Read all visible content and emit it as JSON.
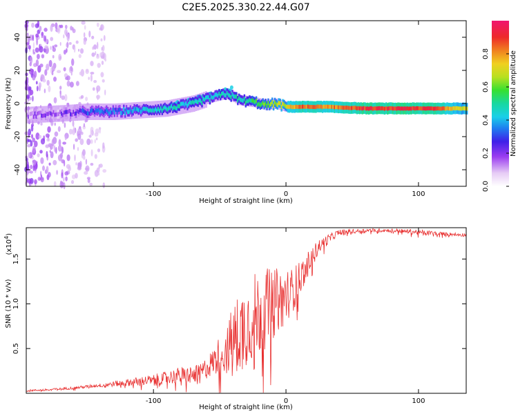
{
  "figure_title": "C2E5.2025.330.22.44.G07",
  "colors": {
    "snr_line": "#e83030",
    "spectrogram_band": "#18c890",
    "frame": "#000000"
  },
  "chart_data": [
    {
      "type": "heatmap",
      "name": "spectrogram",
      "xlabel": "Height of straight line (km)",
      "ylabel": "Frequency (Hz)",
      "xlim": [
        -196,
        136
      ],
      "ylim": [
        -50,
        50
      ],
      "x_ticks": [
        -100,
        0,
        100
      ],
      "x_tick_labels": [
        "-100",
        "0",
        "100"
      ],
      "y_ticks": [
        -40,
        -20,
        0,
        20,
        40
      ],
      "y_tick_labels": [
        "-40",
        "-20",
        "0",
        "20",
        "40"
      ],
      "colorbar": {
        "label": "Normalized spectral amplitude",
        "range": [
          0,
          1
        ],
        "ticks": [
          0.0,
          0.2,
          0.4,
          0.6,
          0.8
        ],
        "tick_labels": [
          "0.0",
          "0.2",
          "0.4",
          "0.6",
          "0.8"
        ]
      },
      "ridge": {
        "height_km": [
          -196,
          -170,
          -150,
          -130,
          -110,
          -90,
          -70,
          -55,
          -45,
          -35,
          -25,
          -15,
          -8,
          0,
          10,
          30,
          60,
          90,
          110,
          136
        ],
        "frequency_hz": [
          -7,
          -6,
          -5,
          -5,
          -4,
          -3,
          0,
          4,
          6,
          2,
          1,
          -1,
          0,
          -2,
          -2,
          -2,
          -3,
          -3,
          -3,
          -3
        ],
        "amplitude": [
          0.15,
          0.2,
          0.3,
          0.35,
          0.4,
          0.45,
          0.45,
          0.45,
          0.5,
          0.45,
          0.55,
          0.6,
          0.65,
          0.7,
          0.85,
          0.8,
          0.9,
          0.9,
          0.9,
          0.7
        ]
      }
    },
    {
      "type": "line",
      "name": "snr",
      "xlabel": "Height of straight line (km)",
      "ylabel": "SNR (10 * v/v)",
      "y_scale_label": "(x10",
      "y_scale_exponent": "4",
      "xlim": [
        -196,
        136
      ],
      "ylim": [
        0,
        1.85
      ],
      "x_ticks": [
        -100,
        0,
        100
      ],
      "x_tick_labels": [
        "-100",
        "0",
        "100"
      ],
      "y_ticks": [
        0.5,
        1.0,
        1.5
      ],
      "y_tick_labels": [
        "0.5",
        "1.0",
        "1.5"
      ],
      "series": [
        {
          "name": "SNR",
          "x": [
            -196,
            -180,
            -160,
            -140,
            -120,
            -100,
            -80,
            -65,
            -55,
            -45,
            -35,
            -25,
            -15,
            -5,
            5,
            15,
            25,
            40,
            60,
            80,
            100,
            120,
            136
          ],
          "y": [
            0.03,
            0.04,
            0.06,
            0.09,
            0.12,
            0.15,
            0.2,
            0.22,
            0.35,
            0.5,
            0.7,
            0.85,
            0.95,
            1.05,
            1.15,
            1.4,
            1.65,
            1.8,
            1.82,
            1.82,
            1.8,
            1.78,
            1.77
          ],
          "noise_amplitude": [
            0.01,
            0.01,
            0.015,
            0.02,
            0.04,
            0.06,
            0.09,
            0.1,
            0.15,
            0.3,
            0.45,
            0.5,
            0.45,
            0.35,
            0.25,
            0.15,
            0.08,
            0.03,
            0.02,
            0.02,
            0.03,
            0.02,
            0.02
          ]
        }
      ]
    }
  ]
}
